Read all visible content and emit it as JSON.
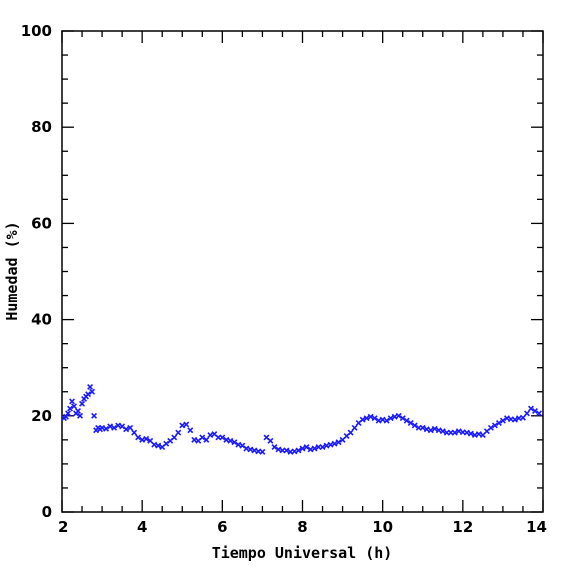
{
  "chart_data": {
    "type": "scatter",
    "xlabel": "Tiempo Universal (h)",
    "ylabel": "Humedad (%)",
    "xlim": [
      2,
      14
    ],
    "ylim": [
      0,
      100
    ],
    "xticks": [
      "2",
      "4",
      "6",
      "8",
      "10",
      "12",
      "14"
    ],
    "yticks": [
      "0",
      "20",
      "40",
      "60",
      "80",
      "100"
    ],
    "marker": "x",
    "marker_color": "#1a1aff",
    "series": [
      {
        "x": [
          2.05,
          2.1,
          2.15,
          2.2,
          2.25,
          2.3,
          2.35,
          2.4,
          2.45,
          2.5,
          2.55,
          2.6,
          2.65,
          2.7,
          2.75,
          2.8,
          2.85,
          2.9,
          2.95,
          3.0,
          3.1,
          3.2,
          3.3,
          3.4,
          3.5,
          3.6,
          3.7,
          3.8,
          3.9,
          4.0,
          4.1,
          4.2,
          4.3,
          4.4,
          4.5,
          4.6,
          4.7,
          4.8,
          4.9,
          5.0,
          5.1,
          5.2,
          5.3,
          5.4,
          5.5,
          5.6,
          5.7,
          5.8,
          5.9,
          6.0,
          6.1,
          6.2,
          6.3,
          6.4,
          6.5,
          6.6,
          6.7,
          6.8,
          6.9,
          7.0,
          7.1,
          7.2,
          7.3,
          7.4,
          7.5,
          7.6,
          7.7,
          7.8,
          7.9,
          8.0,
          8.1,
          8.2,
          8.3,
          8.4,
          8.5,
          8.6,
          8.7,
          8.8,
          8.9,
          9.0,
          9.1,
          9.2,
          9.3,
          9.4,
          9.5,
          9.6,
          9.7,
          9.8,
          9.9,
          10.0,
          10.1,
          10.2,
          10.3,
          10.4,
          10.5,
          10.6,
          10.7,
          10.8,
          10.9,
          11.0,
          11.1,
          11.2,
          11.3,
          11.4,
          11.5,
          11.6,
          11.7,
          11.8,
          11.9,
          12.0,
          12.1,
          12.2,
          12.3,
          12.4,
          12.5,
          12.6,
          12.7,
          12.8,
          12.9,
          13.0,
          13.1,
          13.2,
          13.3,
          13.4,
          13.5,
          13.6,
          13.7,
          13.8,
          13.9
        ],
        "y": [
          19.5,
          19.8,
          20.5,
          21.5,
          23.0,
          22.0,
          20.5,
          21.0,
          20.0,
          22.5,
          23.5,
          24.0,
          24.5,
          26.0,
          25.0,
          20.0,
          17.0,
          17.5,
          17.2,
          17.5,
          17.3,
          17.8,
          17.5,
          18.0,
          17.8,
          17.2,
          17.5,
          16.5,
          15.5,
          15.0,
          15.2,
          14.8,
          14.0,
          13.8,
          13.5,
          14.2,
          14.8,
          15.5,
          16.5,
          18.0,
          18.2,
          17.0,
          15.0,
          14.8,
          15.5,
          15.0,
          16.0,
          16.2,
          15.5,
          15.5,
          15.0,
          14.8,
          14.5,
          14.0,
          13.8,
          13.2,
          13.0,
          12.8,
          12.6,
          12.5,
          15.5,
          14.8,
          13.5,
          13.0,
          12.8,
          12.8,
          12.5,
          12.6,
          12.8,
          13.2,
          13.5,
          13.0,
          13.2,
          13.5,
          13.5,
          13.8,
          14.0,
          14.2,
          14.5,
          15.0,
          15.8,
          16.5,
          17.5,
          18.5,
          19.2,
          19.5,
          19.8,
          19.5,
          19.0,
          19.2,
          19.0,
          19.5,
          19.8,
          20.0,
          19.5,
          19.0,
          18.5,
          18.0,
          17.5,
          17.5,
          17.2,
          17.0,
          17.3,
          17.0,
          16.8,
          16.5,
          16.5,
          16.5,
          16.8,
          16.6,
          16.5,
          16.3,
          16.0,
          16.2,
          16.0,
          16.8,
          17.5,
          18.0,
          18.5,
          19.0,
          19.5,
          19.3,
          19.2,
          19.5,
          19.6,
          20.5,
          21.5,
          21.0,
          20.5
        ]
      }
    ]
  }
}
